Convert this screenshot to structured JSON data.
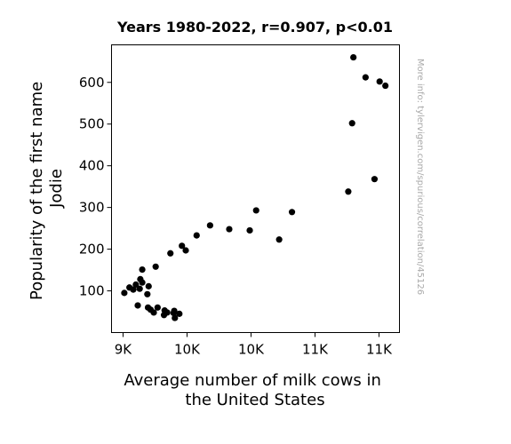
{
  "chart_data": {
    "type": "scatter",
    "title": "Years 1980-2022, r=0.907, p<0.01",
    "xlabel_lines": [
      "Average number of milk cows in",
      "the United States"
    ],
    "ylabel_lines": [
      "Popularity of the first name",
      "Jodie"
    ],
    "watermark": "More info: tylervigen.com/spurious/correlation/45126",
    "xlim": [
      8910,
      11160
    ],
    "ylim": [
      0,
      690
    ],
    "xticks": [
      {
        "value": 9000,
        "label": "9K"
      },
      {
        "value": 9500,
        "label": "10K"
      },
      {
        "value": 10000,
        "label": "10K"
      },
      {
        "value": 10500,
        "label": "11K"
      },
      {
        "value": 11000,
        "label": "11K"
      }
    ],
    "yticks": [
      {
        "value": 100,
        "label": "100"
      },
      {
        "value": 200,
        "label": "200"
      },
      {
        "value": 300,
        "label": "300"
      },
      {
        "value": 400,
        "label": "400"
      },
      {
        "value": 500,
        "label": "500"
      },
      {
        "value": 600,
        "label": "600"
      }
    ],
    "marker_color": "#000000",
    "points": [
      {
        "x": 9010,
        "y": 95
      },
      {
        "x": 9050,
        "y": 108
      },
      {
        "x": 9080,
        "y": 103
      },
      {
        "x": 9100,
        "y": 115
      },
      {
        "x": 9115,
        "y": 65
      },
      {
        "x": 9130,
        "y": 105
      },
      {
        "x": 9135,
        "y": 128
      },
      {
        "x": 9150,
        "y": 120
      },
      {
        "x": 9150,
        "y": 151
      },
      {
        "x": 9190,
        "y": 92
      },
      {
        "x": 9200,
        "y": 111
      },
      {
        "x": 9195,
        "y": 60
      },
      {
        "x": 9215,
        "y": 55
      },
      {
        "x": 9240,
        "y": 48
      },
      {
        "x": 9270,
        "y": 60
      },
      {
        "x": 9255,
        "y": 158
      },
      {
        "x": 9320,
        "y": 42
      },
      {
        "x": 9325,
        "y": 53
      },
      {
        "x": 9345,
        "y": 48
      },
      {
        "x": 9370,
        "y": 190
      },
      {
        "x": 9395,
        "y": 47
      },
      {
        "x": 9400,
        "y": 52
      },
      {
        "x": 9405,
        "y": 35
      },
      {
        "x": 9440,
        "y": 45
      },
      {
        "x": 9460,
        "y": 208
      },
      {
        "x": 9490,
        "y": 197
      },
      {
        "x": 9575,
        "y": 233
      },
      {
        "x": 9680,
        "y": 257
      },
      {
        "x": 9830,
        "y": 248
      },
      {
        "x": 9990,
        "y": 245
      },
      {
        "x": 10040,
        "y": 293
      },
      {
        "x": 10220,
        "y": 223
      },
      {
        "x": 10320,
        "y": 289
      },
      {
        "x": 10760,
        "y": 338
      },
      {
        "x": 10790,
        "y": 502
      },
      {
        "x": 10800,
        "y": 660
      },
      {
        "x": 10895,
        "y": 612
      },
      {
        "x": 10965,
        "y": 368
      },
      {
        "x": 11005,
        "y": 602
      },
      {
        "x": 11050,
        "y": 592
      }
    ]
  }
}
